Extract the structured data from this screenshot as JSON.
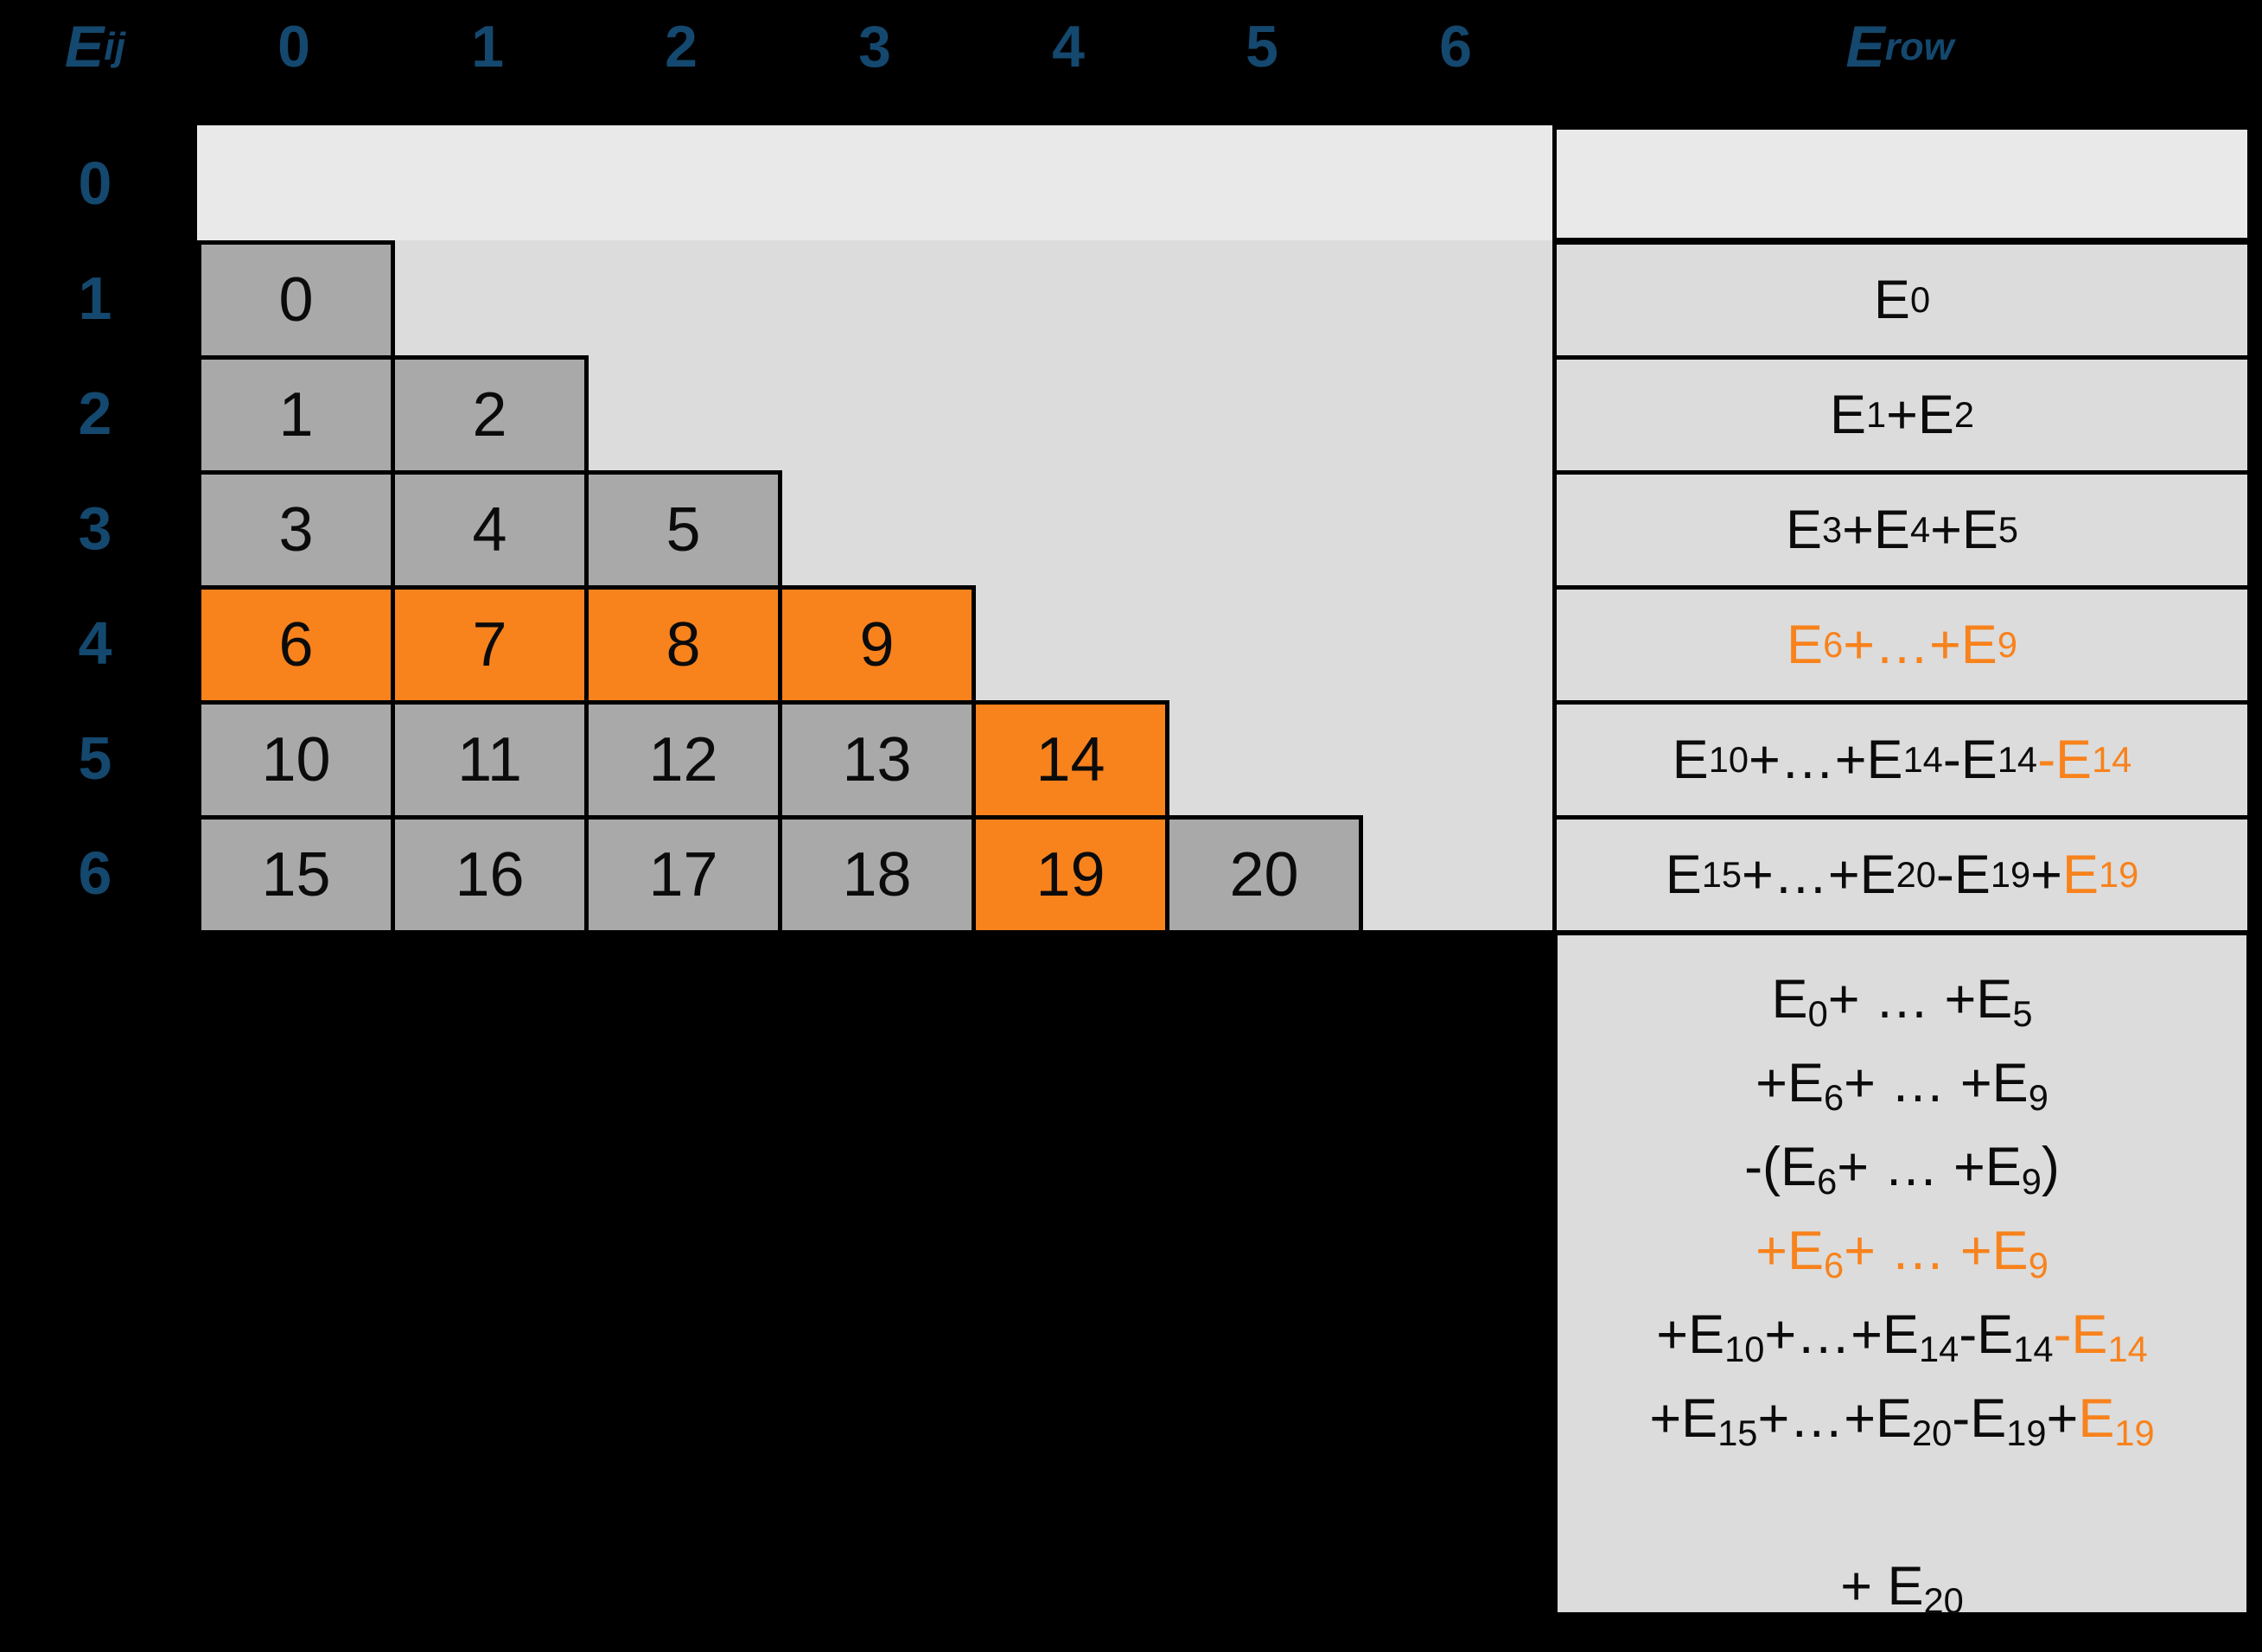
{
  "colors": {
    "background": "#000000",
    "index_blue": "#14486E",
    "row0_bg": "#E9E9E9",
    "grid_bg": "#DCDCDC",
    "cell_gray": "#A9A9A9",
    "highlight_orange": "#F8821C",
    "border_black": "#000000"
  },
  "header": {
    "corner_label": [
      {
        "t": "E"
      },
      {
        "t": "ij",
        "s": 1
      }
    ],
    "column_labels": [
      "0",
      "1",
      "2",
      "3",
      "4",
      "5",
      "6"
    ],
    "row_sum_label": [
      {
        "t": "E"
      },
      {
        "t": "row",
        "s": 1
      }
    ]
  },
  "row_labels": [
    "0",
    "1",
    "2",
    "3",
    "4",
    "5",
    "6"
  ],
  "grid": {
    "rows": [
      {
        "cells": []
      },
      {
        "cells": [
          {
            "v": "0"
          }
        ]
      },
      {
        "cells": [
          {
            "v": "1"
          },
          {
            "v": "2"
          }
        ]
      },
      {
        "cells": [
          {
            "v": "3"
          },
          {
            "v": "4"
          },
          {
            "v": "5"
          }
        ]
      },
      {
        "cells": [
          {
            "v": "6",
            "hl": 1
          },
          {
            "v": "7",
            "hl": 1
          },
          {
            "v": "8",
            "hl": 1
          },
          {
            "v": "9",
            "hl": 1
          }
        ]
      },
      {
        "cells": [
          {
            "v": "10"
          },
          {
            "v": "11"
          },
          {
            "v": "12"
          },
          {
            "v": "13"
          },
          {
            "v": "14",
            "hl": 1
          }
        ]
      },
      {
        "cells": [
          {
            "v": "15"
          },
          {
            "v": "16"
          },
          {
            "v": "17"
          },
          {
            "v": "18"
          },
          {
            "v": "19",
            "hl": 1
          },
          {
            "v": "20"
          }
        ]
      }
    ]
  },
  "row_sums": [
    [],
    [
      {
        "t": "E"
      },
      {
        "t": "0",
        "s": 1
      }
    ],
    [
      {
        "t": "E"
      },
      {
        "t": "1",
        "s": 1
      },
      {
        "t": "+E"
      },
      {
        "t": "2",
        "s": 1
      }
    ],
    [
      {
        "t": "E"
      },
      {
        "t": "3",
        "s": 1
      },
      {
        "t": "+E"
      },
      {
        "t": "4",
        "s": 1
      },
      {
        "t": "+E"
      },
      {
        "t": "5",
        "s": 1
      }
    ],
    [
      {
        "t": "E",
        "o": 1
      },
      {
        "t": "6",
        "s": 1,
        "o": 1
      },
      {
        "t": "+…+E",
        "o": 1
      },
      {
        "t": "9",
        "s": 1,
        "o": 1
      }
    ],
    [
      {
        "t": "E"
      },
      {
        "t": "10",
        "s": 1
      },
      {
        "t": "+…+E"
      },
      {
        "t": "14",
        "s": 1
      },
      {
        "t": "-E"
      },
      {
        "t": "14",
        "s": 1
      },
      {
        "t": "-E",
        "o": 1
      },
      {
        "t": "14",
        "s": 1,
        "o": 1
      }
    ],
    [
      {
        "t": "E"
      },
      {
        "t": "15",
        "s": 1
      },
      {
        "t": "+…+E"
      },
      {
        "t": "20",
        "s": 1
      },
      {
        "t": "-E"
      },
      {
        "t": "19",
        "s": 1
      },
      {
        "t": "+"
      },
      {
        "t": "E",
        "o": 1
      },
      {
        "t": "19",
        "s": 1,
        "o": 1
      }
    ]
  ],
  "total_block": {
    "lines": [
      [
        {
          "t": "E"
        },
        {
          "t": "0",
          "s": 1
        },
        {
          "t": "+ … +E"
        },
        {
          "t": "5",
          "s": 1
        }
      ],
      [
        {
          "t": "+E"
        },
        {
          "t": "6",
          "s": 1
        },
        {
          "t": "+ … +E"
        },
        {
          "t": "9",
          "s": 1
        }
      ],
      [
        {
          "t": "-(E"
        },
        {
          "t": "6",
          "s": 1
        },
        {
          "t": "+ … +E"
        },
        {
          "t": "9",
          "s": 1
        },
        {
          "t": ")"
        }
      ],
      [
        {
          "t": "+E",
          "o": 1
        },
        {
          "t": "6",
          "s": 1,
          "o": 1
        },
        {
          "t": "+ … +E",
          "o": 1
        },
        {
          "t": "9",
          "s": 1,
          "o": 1
        }
      ],
      [
        {
          "t": "+E"
        },
        {
          "t": "10",
          "s": 1
        },
        {
          "t": "+…+E"
        },
        {
          "t": "14",
          "s": 1
        },
        {
          "t": "-E"
        },
        {
          "t": "14",
          "s": 1
        },
        {
          "t": "-E",
          "o": 1
        },
        {
          "t": "14",
          "s": 1,
          "o": 1
        }
      ],
      [
        {
          "t": "+E"
        },
        {
          "t": "15",
          "s": 1
        },
        {
          "t": "+…+E"
        },
        {
          "t": "20",
          "s": 1
        },
        {
          "t": "-E"
        },
        {
          "t": "19",
          "s": 1
        },
        {
          "t": "+"
        },
        {
          "t": "E",
          "o": 1
        },
        {
          "t": "19",
          "s": 1,
          "o": 1
        }
      ],
      [],
      [
        {
          "t": "+ E"
        },
        {
          "t": "20",
          "s": 1
        }
      ]
    ]
  }
}
